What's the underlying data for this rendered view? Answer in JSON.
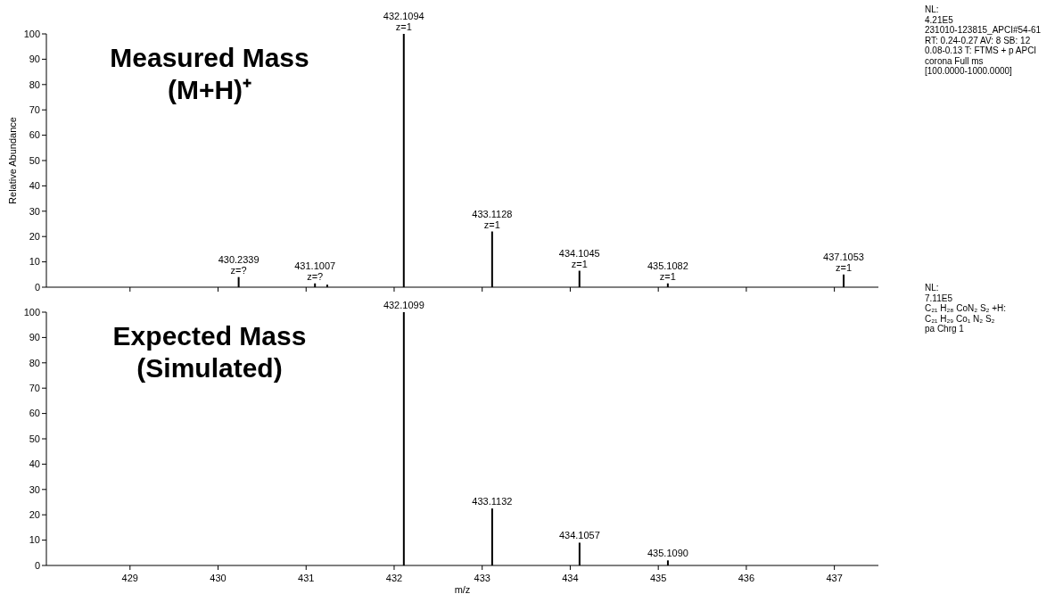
{
  "chart_data": [
    {
      "type": "bar",
      "title": "Measured Mass\n(M+H)⁺",
      "ylabel": "Relative Abundance",
      "color": "#000000",
      "x": [
        430.2339,
        431.1007,
        431.24,
        432.1094,
        433.1128,
        434.1045,
        435.1082,
        437.1053
      ],
      "values": [
        4,
        1.5,
        1,
        100,
        22,
        6.5,
        1.5,
        5
      ],
      "xlim": [
        428.05,
        437.5
      ],
      "xticks": [
        429,
        430,
        431,
        432,
        433,
        434,
        435,
        436,
        437
      ],
      "ylim": [
        0,
        100
      ],
      "yticks": [
        0,
        10,
        20,
        30,
        40,
        50,
        60,
        70,
        80,
        90,
        100
      ],
      "tick_labels": "y",
      "annotations": [
        "NL:\n4.21E5\n231010-123815_APCI#54-61\nRT: 0.24-0.27  AV: 8 SB: 12\n0.08-0.13 T: FTMS + p APCI\ncorona Full ms\n[100.0000-1000.0000]",
        {
          "text": "430.2339\nz=?",
          "x": 430.2339,
          "y": 4
        },
        {
          "text": "431.1007\nz=?",
          "x": 431.1007,
          "y": 1.5
        },
        {
          "text": "432.1094\nz=1",
          "x": 432.1094,
          "y": 100
        },
        {
          "text": "433.1128\nz=1",
          "x": 433.1128,
          "y": 22
        },
        {
          "text": "434.1045\nz=1",
          "x": 434.1045,
          "y": 6.5
        },
        {
          "text": "435.1082\nz=1",
          "x": 435.1082,
          "y": 1.5
        },
        {
          "text": "437.1053\nz=1",
          "x": 437.1053,
          "y": 5
        }
      ]
    },
    {
      "type": "bar",
      "title": "Expected Mass\n(Simulated)",
      "xlabel": "m/z",
      "color": "#000000",
      "x": [
        432.1099,
        433.1132,
        434.1057,
        435.109
      ],
      "values": [
        100,
        22.5,
        9,
        2
      ],
      "xlim": [
        428.05,
        437.5
      ],
      "xticks": [
        429,
        430,
        431,
        432,
        433,
        434,
        435,
        436,
        437
      ],
      "ylim": [
        0,
        100
      ],
      "yticks": [
        0,
        10,
        20,
        30,
        40,
        50,
        60,
        70,
        80,
        90,
        100
      ],
      "annotations": [
        "NL:\n7.11E5\nC₂₁ H₂₈ CoN₂ S₂ +H:\nC₂₁ H₂₉ Co₁ N₂ S₂\npa Chrg 1",
        {
          "text": "432.1099",
          "x": 432.1099,
          "y": 100
        },
        {
          "text": "433.1132",
          "x": 433.1132,
          "y": 22.5
        },
        {
          "text": "434.1057",
          "x": 434.1057,
          "y": 9
        },
        {
          "text": "435.1090",
          "x": 435.109,
          "y": 2
        }
      ]
    }
  ]
}
